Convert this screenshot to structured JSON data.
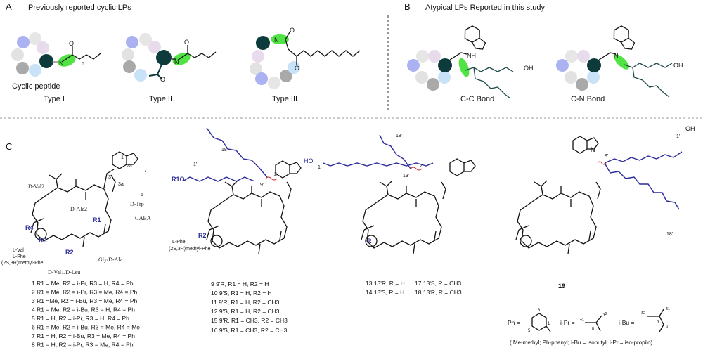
{
  "panels": {
    "a": {
      "letter": "A",
      "title": "Previously reported cyclic LPs",
      "cyclic_peptide": "Cyclic peptide",
      "types": [
        "Type I",
        "Type II",
        "Type III"
      ]
    },
    "b": {
      "letter": "B",
      "title": "Atypical LPs Reported in this study",
      "bonds": [
        "C-C Bond",
        "C-N Bond"
      ]
    },
    "c": {
      "letter": "C"
    }
  },
  "atoms": {
    "N": "N",
    "H": "H",
    "O": "O",
    "NH": "NH",
    "OH": "OH",
    "HN": "HN",
    "HO": "HO",
    "n": "n",
    "R1O": "R1O",
    "R1": "R1",
    "R2": "R2",
    "R3": "R3",
    "R4": "R4",
    "R": "R",
    "Hc": "H,"
  },
  "residue_labels": {
    "dval2": "D-Val2",
    "dala2": "D-Ala2",
    "dtrp": "D-Trp",
    "gaba": "GABA",
    "side": [
      "L-Val",
      "L-Phe",
      "(2S,3R)methyl-Phe"
    ],
    "dval1": "D-Val1/D-Leu",
    "gly": "Gly/D-Ala",
    "lphe": "L-Phe",
    "alpha": "α",
    "beta": "β",
    "gamma": "γ",
    "trp_numbers": [
      "1",
      "7a",
      "7",
      "3",
      "3a",
      "5"
    ]
  },
  "positions": {
    "p18": "18'",
    "p1": "1'",
    "p9": "9'",
    "p2": "2",
    "p13": "13'"
  },
  "compounds_1_8": [
    "1 R1 = Me, R2 = i-Pr, R3 = H,  R4 = Ph",
    "2 R1 = Me, R2 = i-Pr, R3 = Me,  R4 = Ph",
    "3 R1 =Me, R2 = i-Bu, R3 = Me, R4 = Ph",
    "4 R1 = Me, R2 = i-Bu, R3 = H,  R4 = Ph",
    "5 R1 = H, R2 = i-Pr, R3 = H, R4 = Ph",
    "6 R1 = Me, R2 = i-Bu, R3 = Me,  R4 = Me",
    "7 R1 = H, R2 = i-Bu, R3 = Me,  R4 = Ph",
    "8 R1 = H, R2 = i-Pr, R3 = Me,  R4 = Ph"
  ],
  "compounds_9_16": [
    "9 9'R, R1 = H, R2 = H",
    "10 9'S, R1 = H, R2 = H",
    "11 9'R, R1 = H, R2 = CH3",
    "12 9'S, R1 = H, R2 = CH3",
    "15 9'R, R1 = CH3, R2 = CH3",
    "16 9'S, R1 = CH3, R2 = CH3"
  ],
  "compounds_13_18": [
    "13 13'R, R = H",
    "14 13'S, R = H",
    "17 13'S, R = CH3",
    "18 13'R, R = CH3"
  ],
  "compound_19": "19",
  "substituents": {
    "ph": "Ph =",
    "ipr": "i-Pr =",
    "ibu": "i-Bu =",
    "ph_nums": [
      "3",
      "5",
      "1"
    ],
    "ipr_labels": [
      "γ1",
      "γ2",
      "β"
    ],
    "ibu_labels": [
      "δ2",
      "δ1",
      "γ",
      "β"
    ]
  },
  "legend": "( Me-methyl; Ph-phenyl; i-Bu = isobutyl; i-Pr = iso-propilo)",
  "colors": {
    "highlight": "#33dd22",
    "dark_residue": "#0d3b3b",
    "chain_blue": "#2b2b9a",
    "wavy_bond": "#d03030",
    "residues": [
      "#aab2f2",
      "#e6e6e6",
      "#e8dcec",
      "#e2e2e2",
      "#a9a9a9",
      "#c8e2f8"
    ]
  }
}
